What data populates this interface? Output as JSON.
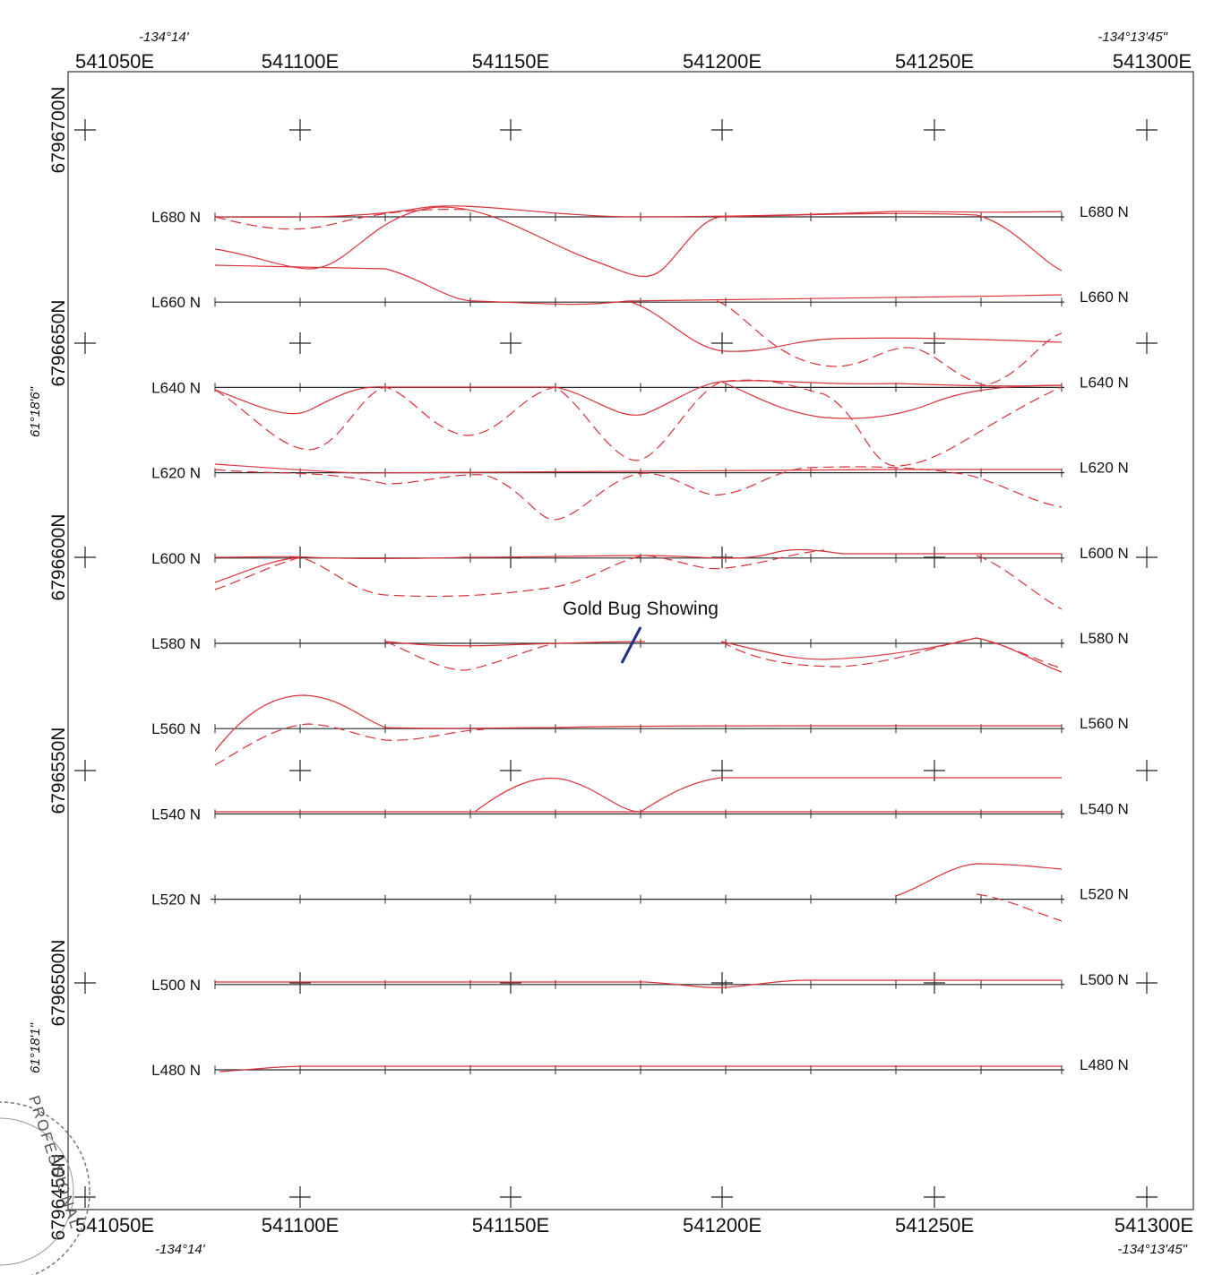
{
  "map": {
    "easting_labels": [
      "541050E",
      "541100E",
      "541150E",
      "541200E",
      "541250E",
      "541300E"
    ],
    "northing_labels": [
      "6796700N",
      "6796650N",
      "6796600N",
      "6796550N",
      "6796500N",
      "6796450N"
    ],
    "longitude_labels": {
      "left": "-134°14'",
      "right": "-134°13'45\""
    },
    "latitude_labels": [
      "61°18'6\"",
      "61°18'1\""
    ],
    "annotation": "Gold Bug Showing",
    "seal_text": "PROFESSIONAL",
    "colors": {
      "line": "#2a2a2a",
      "profile": "#d9323a",
      "annotation": "#1d2f88",
      "background": "#ffffff"
    }
  },
  "grid_lines": [
    {
      "label": "L680 N",
      "north": 680
    },
    {
      "label": "L660 N",
      "north": 660
    },
    {
      "label": "L640 N",
      "north": 640
    },
    {
      "label": "L620 N",
      "north": 620
    },
    {
      "label": "L600 N",
      "north": 600
    },
    {
      "label": "L580 N",
      "north": 580
    },
    {
      "label": "L560 N",
      "north": 560
    },
    {
      "label": "L540 N",
      "north": 540
    },
    {
      "label": "L520 N",
      "north": 520
    },
    {
      "label": "L500 N",
      "north": 500
    },
    {
      "label": "L480 N",
      "north": 480
    }
  ]
}
